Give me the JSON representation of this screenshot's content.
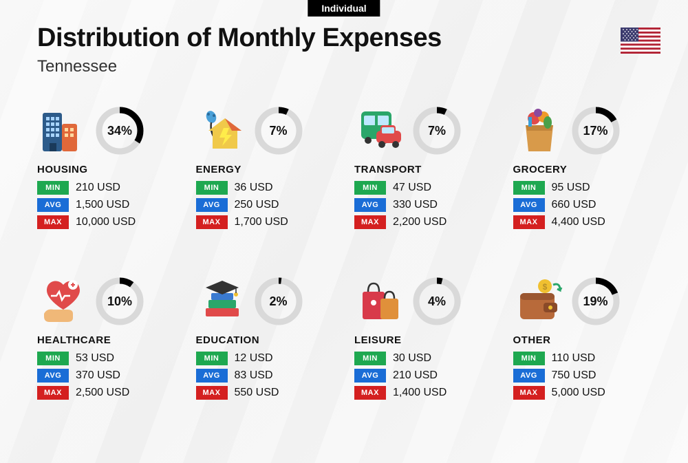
{
  "tab_label": "Individual",
  "title": "Distribution of Monthly Expenses",
  "subtitle": "Tennessee",
  "flag": {
    "stripe_red": "#b22234",
    "stripe_white": "#ffffff",
    "canton": "#3c3b6e"
  },
  "currency_suffix": " USD",
  "donut": {
    "track_color": "#d9d9d9",
    "fill_color": "#000000",
    "stroke_width": 9,
    "radius": 30
  },
  "tag_labels": {
    "min": "MIN",
    "avg": "AVG",
    "max": "MAX"
  },
  "tag_colors": {
    "min": "#1ea850",
    "avg": "#1a6dd6",
    "max": "#d42020"
  },
  "background": "#f5f5f5",
  "categories": [
    {
      "name": "HOUSING",
      "percent": 34,
      "min": "210",
      "avg": "1,500",
      "max": "10,000",
      "icon": "buildings"
    },
    {
      "name": "ENERGY",
      "percent": 7,
      "min": "36",
      "avg": "250",
      "max": "1,700",
      "icon": "energy-house"
    },
    {
      "name": "TRANSPORT",
      "percent": 7,
      "min": "47",
      "avg": "330",
      "max": "2,200",
      "icon": "bus-car"
    },
    {
      "name": "GROCERY",
      "percent": 17,
      "min": "95",
      "avg": "660",
      "max": "4,400",
      "icon": "grocery-bag"
    },
    {
      "name": "HEALTHCARE",
      "percent": 10,
      "min": "53",
      "avg": "370",
      "max": "2,500",
      "icon": "heart-hand"
    },
    {
      "name": "EDUCATION",
      "percent": 2,
      "min": "12",
      "avg": "83",
      "max": "550",
      "icon": "books-cap"
    },
    {
      "name": "LEISURE",
      "percent": 4,
      "min": "30",
      "avg": "210",
      "max": "1,400",
      "icon": "shopping-bags"
    },
    {
      "name": "OTHER",
      "percent": 19,
      "min": "110",
      "avg": "750",
      "max": "5,000",
      "icon": "wallet"
    }
  ]
}
